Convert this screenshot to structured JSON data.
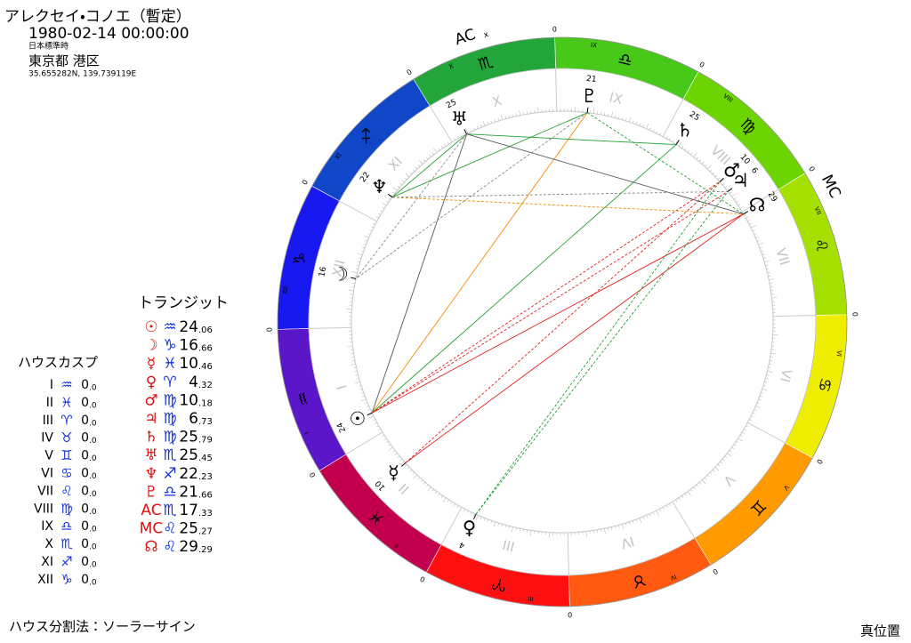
{
  "header": {
    "name": "アレクセイ・コノエ（暫定）",
    "datetime": "1980-02-14 00:00:00",
    "timezone": "日本標準時",
    "place": "東京都 港区",
    "coords": "35.655282N, 139.739119E"
  },
  "transit": {
    "title": "トランジット",
    "rows": [
      {
        "symbol": "☉",
        "sign": "♒",
        "whole": "24",
        "frac": ".06"
      },
      {
        "symbol": "☽",
        "sign": "♑",
        "whole": "16",
        "frac": ".66"
      },
      {
        "symbol": "☿",
        "sign": "♓",
        "whole": "10",
        "frac": ".46"
      },
      {
        "symbol": "♀",
        "sign": "♈",
        "whole": "4",
        "frac": ".32"
      },
      {
        "symbol": "♂",
        "sign": "♍",
        "whole": "10",
        "frac": ".18"
      },
      {
        "symbol": "♃",
        "sign": "♍",
        "whole": "6",
        "frac": ".73"
      },
      {
        "symbol": "♄",
        "sign": "♍",
        "whole": "25",
        "frac": ".79"
      },
      {
        "symbol": "♅",
        "sign": "♏",
        "whole": "25",
        "frac": ".45"
      },
      {
        "symbol": "♆",
        "sign": "♐",
        "whole": "22",
        "frac": ".23"
      },
      {
        "symbol": "♇",
        "sign": "♎",
        "whole": "21",
        "frac": ".66"
      },
      {
        "symbol": "AC",
        "sign": "♏",
        "whole": "17",
        "frac": ".33"
      },
      {
        "symbol": "MC",
        "sign": "♌",
        "whole": "25",
        "frac": ".27"
      },
      {
        "symbol": "☊",
        "sign": "♌",
        "whole": "29",
        "frac": ".29"
      }
    ]
  },
  "houses": {
    "title": "ハウスカスプ",
    "rows": [
      {
        "house": "I",
        "sign": "♒",
        "whole": "0",
        "frac": ".0"
      },
      {
        "house": "II",
        "sign": "♓",
        "whole": "0",
        "frac": ".0"
      },
      {
        "house": "III",
        "sign": "♈",
        "whole": "0",
        "frac": ".0"
      },
      {
        "house": "IV",
        "sign": "♉",
        "whole": "0",
        "frac": ".0"
      },
      {
        "house": "V",
        "sign": "♊",
        "whole": "0",
        "frac": ".0"
      },
      {
        "house": "VI",
        "sign": "♋",
        "whole": "0",
        "frac": ".0"
      },
      {
        "house": "VII",
        "sign": "♌",
        "whole": "0",
        "frac": ".0"
      },
      {
        "house": "VIII",
        "sign": "♍",
        "whole": "0",
        "frac": ".0"
      },
      {
        "house": "IX",
        "sign": "♎",
        "whole": "0",
        "frac": ".0"
      },
      {
        "house": "X",
        "sign": "♏",
        "whole": "0",
        "frac": ".0"
      },
      {
        "house": "XI",
        "sign": "♐",
        "whole": "0",
        "frac": ".0"
      },
      {
        "house": "XII",
        "sign": "♑",
        "whole": "0",
        "frac": ".0"
      }
    ]
  },
  "wheel": {
    "cusp_label": "0",
    "ac_suffix": "x",
    "signs": [
      {
        "glyph": "♈",
        "color": "#ff1010",
        "house": "III"
      },
      {
        "glyph": "♉",
        "color": "#ff5a10",
        "house": "IV"
      },
      {
        "glyph": "♊",
        "color": "#ff9a00",
        "house": "V"
      },
      {
        "glyph": "♋",
        "color": "#f0ee00",
        "house": "VI"
      },
      {
        "glyph": "♌",
        "color": "#a6e000",
        "house": "VII"
      },
      {
        "glyph": "♍",
        "color": "#6cd400",
        "house": "VIII"
      },
      {
        "glyph": "♎",
        "color": "#48c818",
        "house": "IX"
      },
      {
        "glyph": "♏",
        "color": "#22a63a",
        "house": "X"
      },
      {
        "glyph": "♐",
        "color": "#1046c8",
        "house": "XI"
      },
      {
        "glyph": "♑",
        "color": "#1818f0",
        "house": "XII"
      },
      {
        "glyph": "♒",
        "color": "#5a16c8",
        "house": "I"
      },
      {
        "glyph": "♓",
        "color": "#c2004e",
        "house": "II"
      }
    ]
  },
  "footer": {
    "method": "ハウス分割法：ソーラーサイン",
    "position": "真位置"
  }
}
